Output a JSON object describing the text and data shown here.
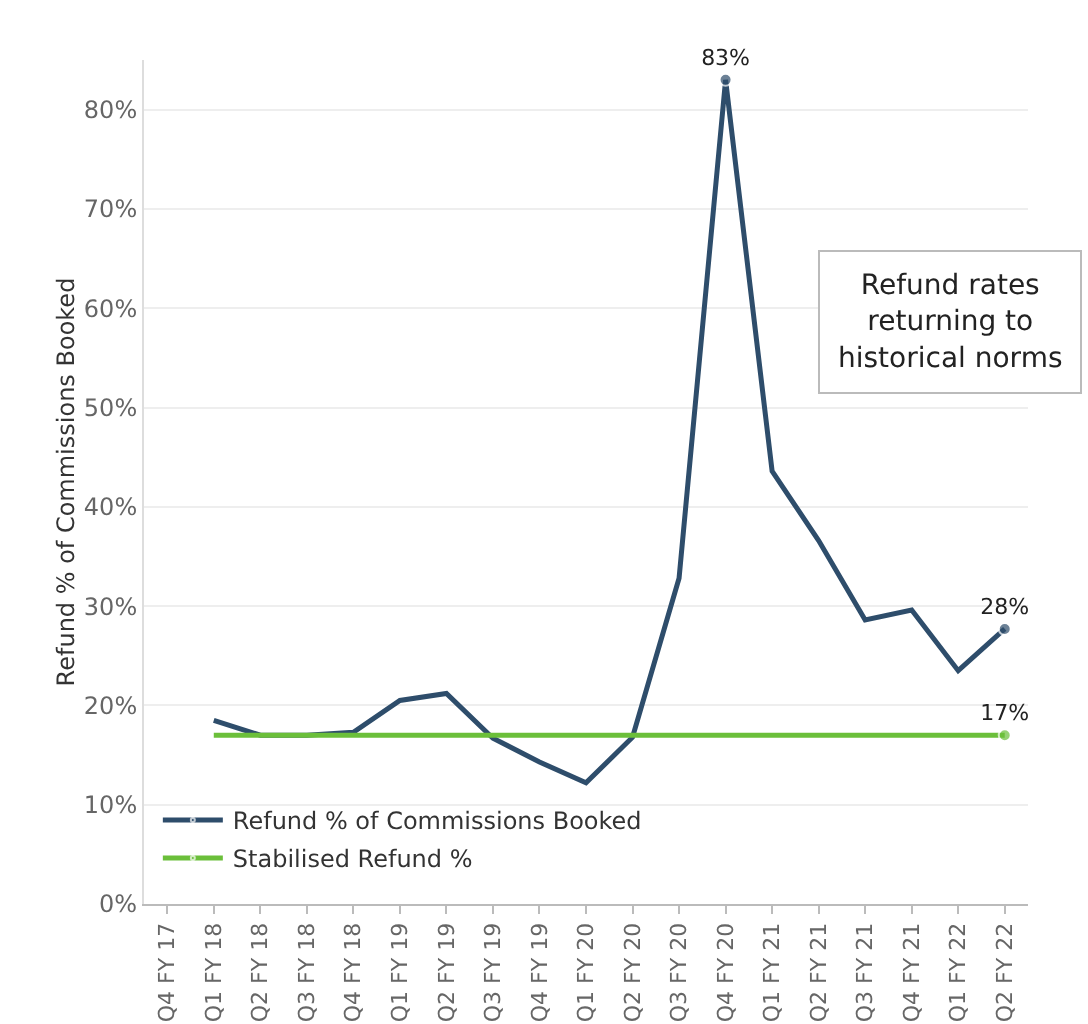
{
  "chart_data": {
    "type": "line",
    "ylabel": "Refund % of Commissions Booked",
    "categories": [
      "Q4 FY 17",
      "Q1 FY 18",
      "Q2 FY 18",
      "Q3 FY 18",
      "Q4 FY 18",
      "Q1 FY 19",
      "Q2 FY 19",
      "Q3 FY 19",
      "Q4 FY 19",
      "Q1 FY 20",
      "Q2 FY 20",
      "Q3 FY 20",
      "Q4 FY 20",
      "Q1 FY 21",
      "Q2 FY 21",
      "Q3 FY 21",
      "Q4 FY 21",
      "Q1 FY 22",
      "Q2 FY 22"
    ],
    "series": [
      {
        "name": "Refund % of Commissions Booked",
        "color": "#2e4d6b",
        "values": [
          null,
          18.5,
          17,
          17,
          17.3,
          20.5,
          21.2,
          16.7,
          14.3,
          12.2,
          16.8,
          32.8,
          83,
          43.6,
          36.6,
          28.6,
          29.6,
          23.5,
          27.7
        ],
        "value_labels": [
          null,
          null,
          null,
          null,
          null,
          null,
          null,
          null,
          null,
          null,
          null,
          null,
          "83%",
          null,
          null,
          null,
          null,
          null,
          "28%"
        ]
      },
      {
        "name": "Stabilised Refund %",
        "color": "#6bbf3a",
        "values": [
          null,
          17,
          17,
          17,
          17,
          17,
          17,
          17,
          17,
          17,
          17,
          17,
          17,
          17,
          17,
          17,
          17,
          17,
          17
        ],
        "value_labels": [
          null,
          null,
          null,
          null,
          null,
          null,
          null,
          null,
          null,
          null,
          null,
          null,
          null,
          null,
          null,
          null,
          null,
          null,
          "17%"
        ]
      }
    ],
    "ylim": [
      0,
      85
    ],
    "yticks": [
      {
        "value": 0,
        "label": "0%"
      },
      {
        "value": 10,
        "label": "10%"
      },
      {
        "value": 20,
        "label": "20%"
      },
      {
        "value": 30,
        "label": "30%"
      },
      {
        "value": 40,
        "label": "40%"
      },
      {
        "value": 50,
        "label": "50%"
      },
      {
        "value": 60,
        "label": "60%"
      },
      {
        "value": 70,
        "label": "70%"
      },
      {
        "value": 80,
        "label": "80%"
      }
    ],
    "grid": "y",
    "legend": "bottom left",
    "marker": "none",
    "line_style": "solid",
    "annotations": [
      "Refund rates returning to historical norms"
    ]
  }
}
